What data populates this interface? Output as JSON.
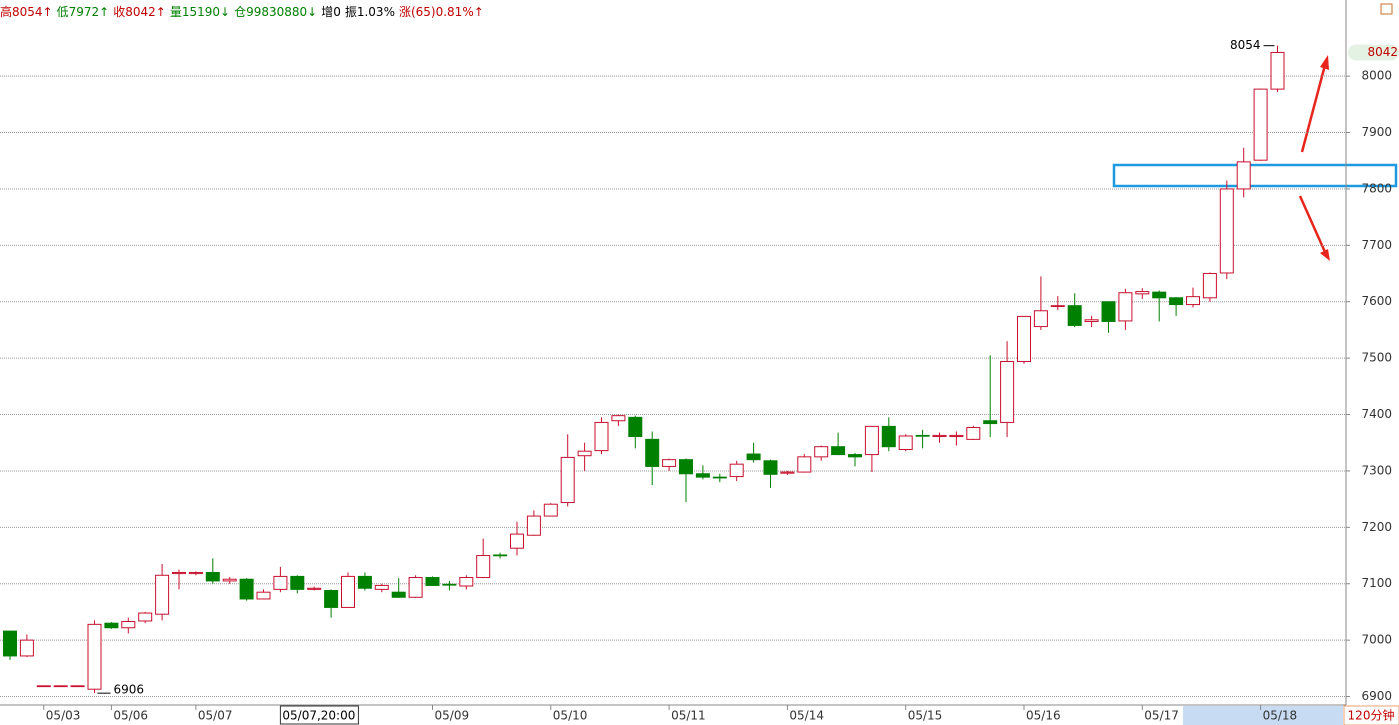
{
  "chart_data": {
    "type": "candlestick",
    "header": [
      {
        "text": "高8054↑",
        "color": "#c00000"
      },
      {
        "text": "低7972↑",
        "color": "#008000"
      },
      {
        "text": "收8042↑",
        "color": "#c00000"
      },
      {
        "text": "量15190↓",
        "color": "#008000"
      },
      {
        "text": "仓99830880↓",
        "color": "#008000"
      },
      {
        "text": "增0",
        "color": "#000000"
      },
      {
        "text": "振1.03%",
        "color": "#000000"
      },
      {
        "text": "涨(65)0.81%↑",
        "color": "#c00000"
      }
    ],
    "period_label": "120分钟",
    "categories": [
      null,
      null,
      "05/03",
      null,
      null,
      null,
      "05/06",
      null,
      null,
      null,
      null,
      "05/07",
      null,
      null,
      null,
      null,
      "05/07,20:00",
      null,
      null,
      null,
      null,
      null,
      null,
      null,
      null,
      "05/09",
      null,
      null,
      null,
      null,
      null,
      null,
      "05/10",
      null,
      null,
      null,
      null,
      null,
      null,
      "05/11",
      null,
      null,
      null,
      null,
      null,
      null,
      "05/14",
      null,
      null,
      null,
      null,
      null,
      null,
      "05/15",
      null,
      null,
      null,
      null,
      null,
      null,
      "05/16",
      null,
      null,
      null,
      null,
      null,
      null,
      "05/17",
      null,
      null,
      null,
      null,
      null,
      null,
      "05/18",
      null
    ],
    "crosshair_index": 16,
    "open": [
      7016,
      6972,
      6919,
      6919,
      6919,
      6913,
      7030,
      7022,
      7034,
      7046,
      7118,
      7118,
      7120,
      7105,
      7108,
      7073,
      7090,
      7113,
      7090,
      7088,
      7058,
      7113,
      7090,
      7085,
      7076,
      7111,
      7099,
      7096,
      7111,
      7151,
      7163,
      7186,
      7220,
      7244,
      7327,
      7336,
      7389,
      7395,
      7356,
      7308,
      7320,
      7295,
      7289,
      7290,
      7330,
      7318,
      7296,
      7298,
      7325,
      7343,
      7329,
      7329,
      7379,
      7338,
      7363,
      7361,
      7361,
      7356,
      7389,
      7386,
      7494,
      7556,
      7592,
      7593,
      7565,
      7600,
      7566,
      7614,
      7617,
      7607,
      7595,
      7607,
      7651,
      7800,
      7851,
      7977
    ],
    "high": [
      7016,
      7010,
      6919,
      6919,
      6919,
      7035,
      7032,
      7040,
      7050,
      7135,
      7125,
      7122,
      7145,
      7112,
      7110,
      7090,
      7130,
      7115,
      7095,
      7090,
      7120,
      7120,
      7100,
      7110,
      7115,
      7113,
      7105,
      7115,
      7180,
      7155,
      7210,
      7230,
      7243,
      7365,
      7350,
      7395,
      7400,
      7398,
      7370,
      7322,
      7322,
      7310,
      7295,
      7318,
      7350,
      7320,
      7300,
      7330,
      7345,
      7368,
      7332,
      7380,
      7395,
      7365,
      7373,
      7368,
      7370,
      7380,
      7505,
      7530,
      7575,
      7645,
      7610,
      7615,
      7575,
      7600,
      7623,
      7624,
      7620,
      7608,
      7625,
      7652,
      7815,
      7873,
      7978,
      8054
    ],
    "low": [
      6965,
      6970,
      6919,
      6919,
      6919,
      6906,
      7020,
      7012,
      7030,
      7035,
      7090,
      7115,
      7100,
      7100,
      7070,
      7073,
      7085,
      7083,
      7088,
      7040,
      7058,
      7088,
      7085,
      7075,
      7075,
      7096,
      7088,
      7090,
      7110,
      7145,
      7150,
      7185,
      7220,
      7237,
      7300,
      7330,
      7380,
      7340,
      7275,
      7300,
      7245,
      7285,
      7280,
      7282,
      7315,
      7270,
      7293,
      7297,
      7318,
      7328,
      7308,
      7298,
      7335,
      7335,
      7340,
      7350,
      7345,
      7355,
      7360,
      7360,
      7490,
      7550,
      7585,
      7555,
      7555,
      7545,
      7550,
      7605,
      7565,
      7575,
      7590,
      7600,
      7640,
      7785,
      7850,
      7972
    ],
    "close": [
      6972,
      7000,
      6919,
      6919,
      6919,
      7028,
      7022,
      7033,
      7048,
      7115,
      7120,
      7120,
      7105,
      7108,
      7073,
      7085,
      7113,
      7090,
      7092,
      7058,
      7113,
      7092,
      7097,
      7076,
      7111,
      7097,
      7098,
      7111,
      7150,
      7150,
      7188,
      7220,
      7241,
      7324,
      7335,
      7386,
      7398,
      7361,
      7308,
      7320,
      7295,
      7289,
      7288,
      7312,
      7320,
      7294,
      7298,
      7325,
      7343,
      7329,
      7325,
      7379,
      7343,
      7362,
      7362,
      7363,
      7363,
      7377,
      7384,
      7494,
      7574,
      7584,
      7593,
      7558,
      7568,
      7565,
      7616,
      7618,
      7607,
      7595,
      7609,
      7650,
      7800,
      7848,
      7977,
      8042
    ],
    "up_color": "#c8102e",
    "down_color": "#008000",
    "max_label": 8054,
    "min_label": 6906,
    "last_price": 8042,
    "ylim": [
      6885,
      8135
    ],
    "yticks": [
      6900,
      7000,
      7100,
      7200,
      7300,
      7400,
      7500,
      7600,
      7700,
      7800,
      7900,
      8000
    ],
    "grid": true
  }
}
